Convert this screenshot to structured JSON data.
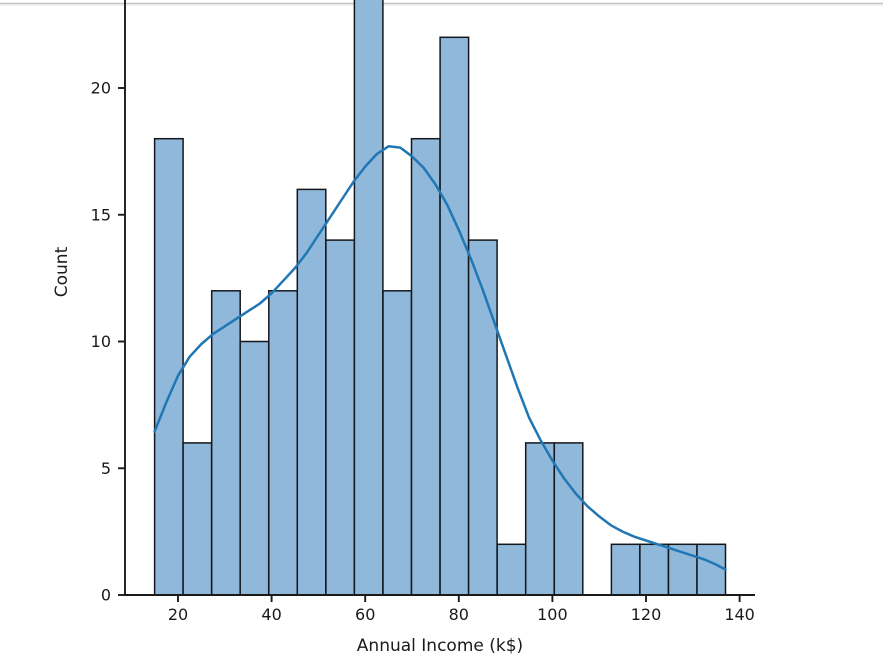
{
  "page": {
    "background": "#ffffff",
    "top_rule_color": "#c2c2c2"
  },
  "chart_data": {
    "type": "bar",
    "subtype": "histogram_with_kde",
    "title": "",
    "xlabel": "Annual Income (k$)",
    "ylabel": "Count",
    "n_total": 200,
    "bin_edges": [
      15.0,
      21.1,
      27.2,
      33.3,
      39.4,
      45.5,
      51.6,
      57.7,
      63.8,
      69.9,
      76.0,
      82.1,
      88.2,
      94.3,
      100.4,
      106.5,
      112.6,
      118.7,
      124.8,
      130.9,
      137.0
    ],
    "counts": [
      18,
      6,
      12,
      10,
      12,
      16,
      14,
      24,
      12,
      18,
      22,
      14,
      2,
      6,
      6,
      0,
      2,
      2,
      2,
      2
    ],
    "series": [
      {
        "name": "histogram",
        "values": [
          18,
          6,
          12,
          10,
          12,
          16,
          14,
          24,
          12,
          18,
          22,
          14,
          2,
          6,
          6,
          0,
          2,
          2,
          2,
          2
        ]
      },
      {
        "name": "kde",
        "values": "see kde.x / kde.y"
      }
    ],
    "kde": {
      "x": [
        15,
        17.5,
        20,
        22.5,
        25,
        27.5,
        30,
        32.5,
        35,
        37.5,
        40,
        42.5,
        45,
        47.5,
        50,
        52.5,
        55,
        57.5,
        60,
        62.5,
        65,
        67.5,
        70,
        72.5,
        75,
        77.5,
        80,
        82.5,
        85,
        87.5,
        90,
        92.5,
        95,
        97.5,
        100,
        102.5,
        105,
        107.5,
        110,
        112.5,
        115,
        117.5,
        120,
        122.5,
        125,
        127.5,
        130,
        132.5,
        135,
        137
      ],
      "y": [
        6.45,
        7.6,
        8.65,
        9.4,
        9.9,
        10.3,
        10.6,
        10.9,
        11.2,
        11.5,
        11.9,
        12.4,
        12.9,
        13.5,
        14.2,
        14.9,
        15.6,
        16.3,
        16.9,
        17.4,
        17.7,
        17.65,
        17.3,
        16.85,
        16.2,
        15.4,
        14.4,
        13.3,
        12.1,
        10.8,
        9.5,
        8.2,
        7.0,
        6.1,
        5.3,
        4.6,
        4.0,
        3.5,
        3.1,
        2.75,
        2.5,
        2.3,
        2.15,
        2.0,
        1.85,
        1.7,
        1.55,
        1.4,
        1.2,
        1.0
      ]
    },
    "x_ticks": [
      20,
      40,
      60,
      80,
      100,
      120,
      140
    ],
    "y_ticks": [
      0,
      5,
      10,
      15,
      20
    ],
    "xlim": [
      8.9,
      143.1
    ],
    "ylim": [
      0,
      25.2
    ],
    "visible_y_top": 23.5,
    "grid": false,
    "legend": "none",
    "colors": {
      "bar_fill": "#8fb8da",
      "bar_edge": "#14171c",
      "kde_line": "#2177b4",
      "axis": "#1a1a1a",
      "text": "#1a1a1a"
    }
  }
}
